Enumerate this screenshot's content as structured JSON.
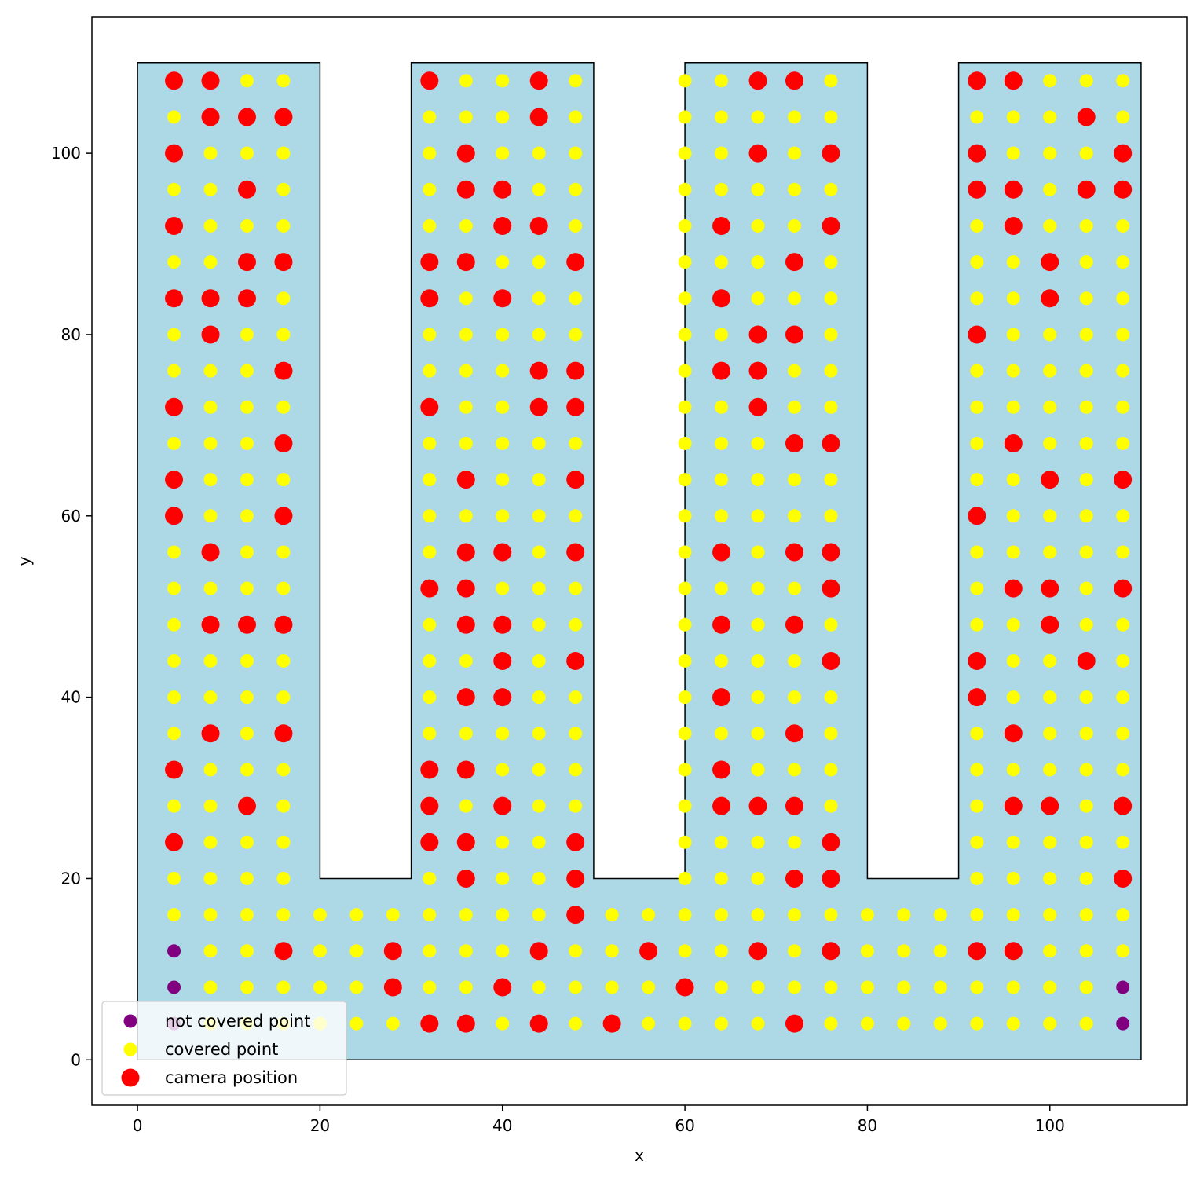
{
  "chart_data": {
    "type": "scatter",
    "title": "",
    "xlabel": "x",
    "ylabel": "y",
    "xlim": [
      -5,
      115
    ],
    "ylim": [
      -5,
      115
    ],
    "xticks": [
      0,
      20,
      40,
      60,
      80,
      100
    ],
    "yticks": [
      0,
      20,
      40,
      60,
      80,
      100
    ],
    "grid": false,
    "legend_position": "lower-left",
    "region": {
      "polygon": [
        [
          0,
          0
        ],
        [
          110,
          0
        ],
        [
          110,
          110
        ],
        [
          90,
          110
        ],
        [
          90,
          20
        ],
        [
          80,
          20
        ],
        [
          80,
          110
        ],
        [
          60,
          110
        ],
        [
          60,
          20
        ],
        [
          50,
          20
        ],
        [
          50,
          110
        ],
        [
          30,
          110
        ],
        [
          30,
          20
        ],
        [
          20,
          20
        ],
        [
          20,
          110
        ],
        [
          0,
          110
        ]
      ],
      "fill_color": "#add8e6",
      "edge_color": "#000000"
    },
    "grid_points": {
      "spacing": 4,
      "start": 4,
      "x_range": [
        4,
        108
      ],
      "y_range": [
        4,
        108
      ]
    },
    "series": [
      {
        "name": "not covered point",
        "color": "#800080",
        "points": [
          [
            4,
            4
          ],
          [
            4,
            8
          ],
          [
            4,
            12
          ],
          [
            108,
            4
          ],
          [
            108,
            8
          ]
        ]
      },
      {
        "name": "covered point",
        "color": "#ffff00",
        "points": "all other grid points inside region"
      },
      {
        "name": "camera position",
        "color": "#ff0000",
        "points": [
          [
            4,
            108
          ],
          [
            8,
            108
          ],
          [
            8,
            104
          ],
          [
            12,
            104
          ],
          [
            16,
            104
          ],
          [
            4,
            100
          ],
          [
            12,
            96
          ],
          [
            4,
            92
          ],
          [
            12,
            88
          ],
          [
            16,
            88
          ],
          [
            4,
            84
          ],
          [
            8,
            84
          ],
          [
            12,
            84
          ],
          [
            8,
            80
          ],
          [
            16,
            76
          ],
          [
            4,
            72
          ],
          [
            16,
            68
          ],
          [
            4,
            64
          ],
          [
            4,
            60
          ],
          [
            16,
            60
          ],
          [
            8,
            56
          ],
          [
            8,
            48
          ],
          [
            12,
            48
          ],
          [
            16,
            48
          ],
          [
            8,
            36
          ],
          [
            16,
            36
          ],
          [
            4,
            32
          ],
          [
            12,
            28
          ],
          [
            4,
            24
          ],
          [
            16,
            12
          ],
          [
            32,
            108
          ],
          [
            44,
            108
          ],
          [
            44,
            104
          ],
          [
            36,
            100
          ],
          [
            36,
            96
          ],
          [
            40,
            96
          ],
          [
            40,
            92
          ],
          [
            44,
            92
          ],
          [
            32,
            88
          ],
          [
            36,
            88
          ],
          [
            48,
            88
          ],
          [
            32,
            84
          ],
          [
            40,
            84
          ],
          [
            44,
            76
          ],
          [
            48,
            76
          ],
          [
            32,
            72
          ],
          [
            44,
            72
          ],
          [
            48,
            72
          ],
          [
            36,
            64
          ],
          [
            48,
            64
          ],
          [
            36,
            56
          ],
          [
            40,
            56
          ],
          [
            48,
            56
          ],
          [
            32,
            52
          ],
          [
            36,
            52
          ],
          [
            36,
            48
          ],
          [
            40,
            48
          ],
          [
            40,
            44
          ],
          [
            48,
            44
          ],
          [
            36,
            40
          ],
          [
            40,
            40
          ],
          [
            32,
            32
          ],
          [
            36,
            32
          ],
          [
            32,
            28
          ],
          [
            40,
            28
          ],
          [
            32,
            24
          ],
          [
            36,
            24
          ],
          [
            48,
            24
          ],
          [
            36,
            20
          ],
          [
            48,
            20
          ],
          [
            48,
            16
          ],
          [
            68,
            108
          ],
          [
            72,
            108
          ],
          [
            68,
            100
          ],
          [
            76,
            100
          ],
          [
            64,
            92
          ],
          [
            76,
            92
          ],
          [
            72,
            88
          ],
          [
            64,
            84
          ],
          [
            68,
            80
          ],
          [
            72,
            80
          ],
          [
            64,
            76
          ],
          [
            68,
            76
          ],
          [
            68,
            72
          ],
          [
            72,
            68
          ],
          [
            76,
            68
          ],
          [
            64,
            56
          ],
          [
            72,
            56
          ],
          [
            76,
            56
          ],
          [
            76,
            52
          ],
          [
            64,
            48
          ],
          [
            72,
            48
          ],
          [
            76,
            44
          ],
          [
            64,
            40
          ],
          [
            72,
            36
          ],
          [
            64,
            32
          ],
          [
            64,
            28
          ],
          [
            68,
            28
          ],
          [
            72,
            28
          ],
          [
            76,
            24
          ],
          [
            72,
            20
          ],
          [
            76,
            20
          ],
          [
            92,
            108
          ],
          [
            96,
            108
          ],
          [
            104,
            104
          ],
          [
            92,
            100
          ],
          [
            108,
            100
          ],
          [
            92,
            96
          ],
          [
            96,
            96
          ],
          [
            104,
            96
          ],
          [
            108,
            96
          ],
          [
            96,
            92
          ],
          [
            100,
            88
          ],
          [
            100,
            84
          ],
          [
            92,
            80
          ],
          [
            96,
            68
          ],
          [
            100,
            64
          ],
          [
            108,
            64
          ],
          [
            92,
            60
          ],
          [
            96,
            52
          ],
          [
            100,
            52
          ],
          [
            108,
            52
          ],
          [
            100,
            48
          ],
          [
            92,
            44
          ],
          [
            104,
            44
          ],
          [
            92,
            40
          ],
          [
            96,
            36
          ],
          [
            96,
            28
          ],
          [
            100,
            28
          ],
          [
            108,
            28
          ],
          [
            108,
            20
          ],
          [
            28,
            12
          ],
          [
            44,
            12
          ],
          [
            56,
            12
          ],
          [
            68,
            12
          ],
          [
            76,
            12
          ],
          [
            92,
            12
          ],
          [
            96,
            12
          ],
          [
            28,
            8
          ],
          [
            40,
            8
          ],
          [
            60,
            8
          ],
          [
            32,
            4
          ],
          [
            36,
            4
          ],
          [
            44,
            4
          ],
          [
            52,
            4
          ],
          [
            72,
            4
          ]
        ]
      }
    ]
  }
}
